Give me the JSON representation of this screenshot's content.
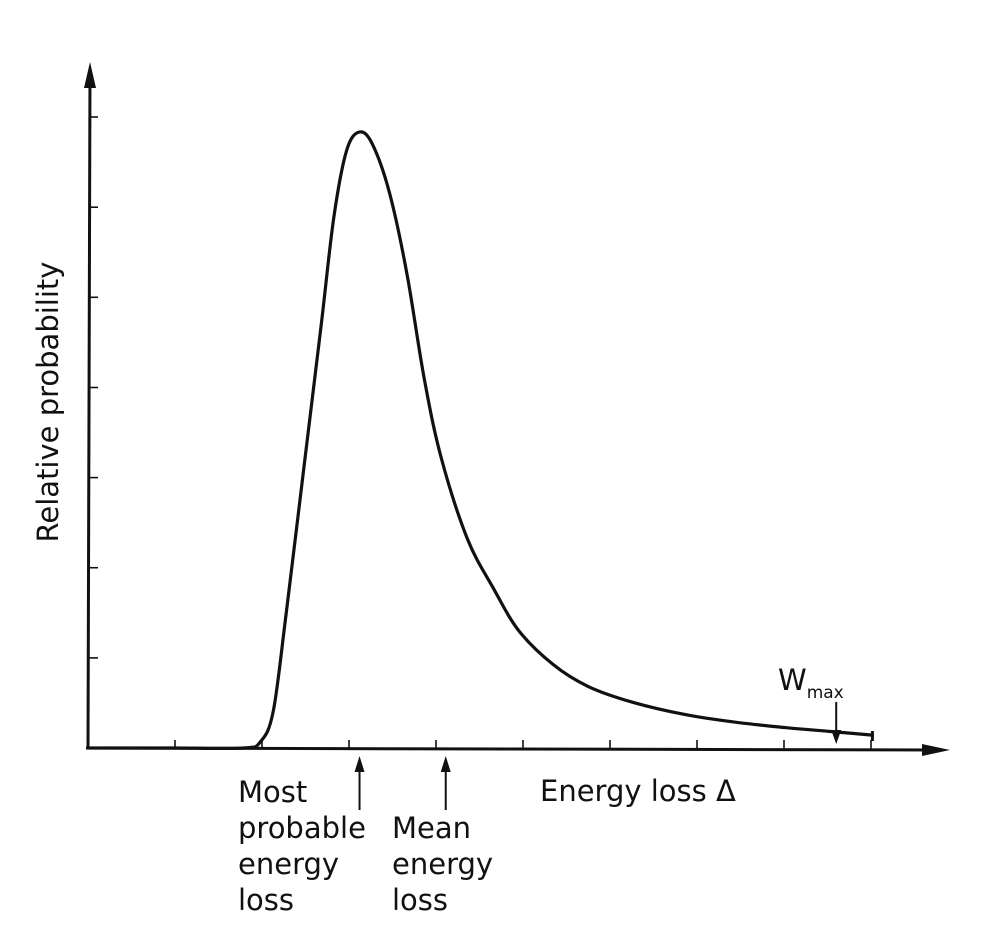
{
  "chart_data": {
    "type": "line",
    "ylabel": "Relative probability",
    "xlabel": "Energy loss Δ",
    "y_ticks_count": 7,
    "x_ticks_count": 9,
    "series": [
      {
        "points": [
          [
            0.0,
            0.0
          ],
          [
            0.1,
            0.0
          ],
          [
            0.18,
            0.0
          ],
          [
            0.2,
            0.01
          ],
          [
            0.215,
            0.06
          ],
          [
            0.23,
            0.22
          ],
          [
            0.25,
            0.45
          ],
          [
            0.27,
            0.68
          ],
          [
            0.285,
            0.86
          ],
          [
            0.3,
            0.97
          ],
          [
            0.315,
            1.0
          ],
          [
            0.33,
            0.98
          ],
          [
            0.35,
            0.9
          ],
          [
            0.37,
            0.77
          ],
          [
            0.39,
            0.6
          ],
          [
            0.41,
            0.47
          ],
          [
            0.44,
            0.34
          ],
          [
            0.47,
            0.26
          ],
          [
            0.5,
            0.19
          ],
          [
            0.54,
            0.135
          ],
          [
            0.58,
            0.1
          ],
          [
            0.63,
            0.075
          ],
          [
            0.69,
            0.055
          ],
          [
            0.75,
            0.042
          ],
          [
            0.81,
            0.033
          ],
          [
            0.86,
            0.027
          ],
          [
            0.91,
            0.021
          ]
        ]
      }
    ],
    "annotations": {
      "most_probable": {
        "x": 0.315,
        "label": [
          "Most",
          "probable",
          "energy",
          "loss"
        ]
      },
      "mean": {
        "x": 0.415,
        "label": [
          "Mean",
          "energy",
          "loss"
        ]
      },
      "wmax": {
        "x": 0.868,
        "label_main": "W",
        "label_sub": "max"
      }
    },
    "grid": false,
    "legend": "none"
  },
  "colors": {
    "ink": "#111111",
    "background": "#ffffff"
  }
}
